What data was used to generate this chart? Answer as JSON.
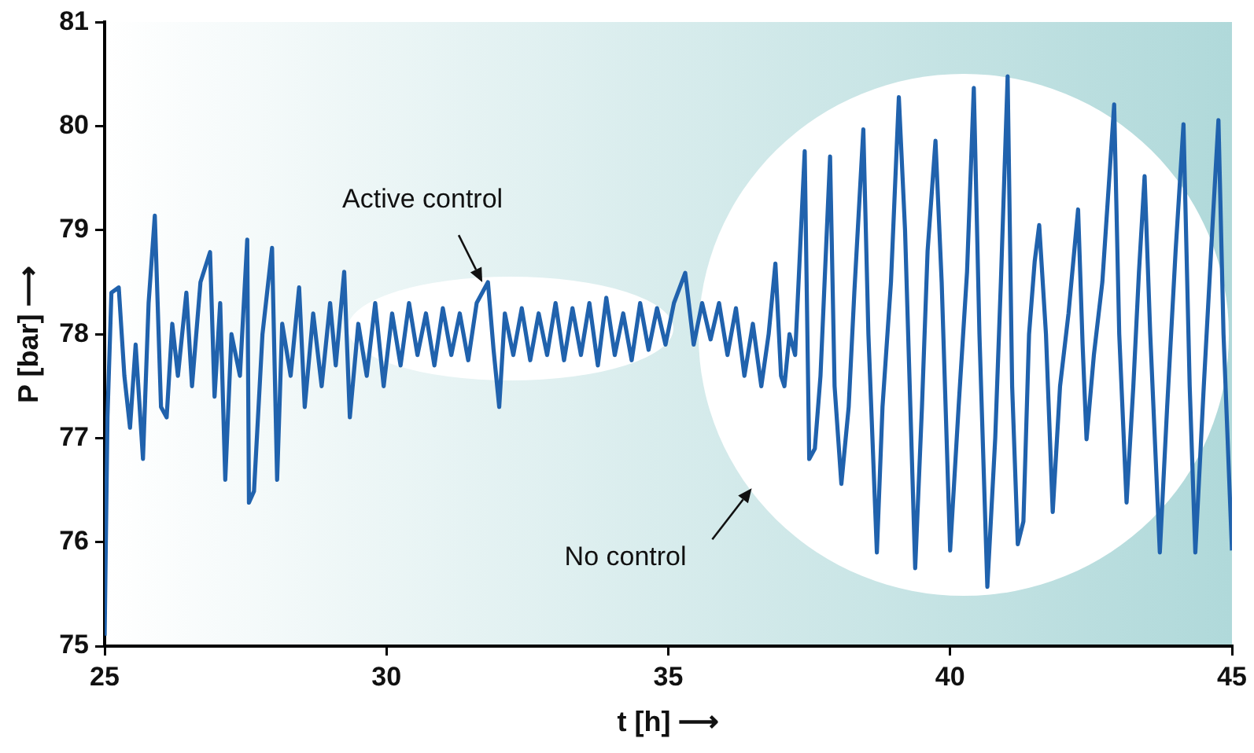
{
  "chart_data": {
    "type": "line",
    "xlabel": "t [h] ⟶",
    "ylabel": "P [bar] ⟶",
    "xlim": [
      25,
      45
    ],
    "xticks": [
      25,
      30,
      35,
      40,
      45
    ],
    "ylim": [
      75,
      81
    ],
    "yticks": [
      75,
      76,
      77,
      78,
      79,
      80,
      81
    ],
    "grid": false,
    "legend": false,
    "marker": "none",
    "line_style": "solid",
    "annotations": [
      {
        "text": "Active control",
        "x": 31.7,
        "y": 78.5
      },
      "No control"
    ],
    "x": [
      25.0,
      25.05,
      25.12,
      25.25,
      25.35,
      25.45,
      25.55,
      25.68,
      25.78,
      25.89,
      26.0,
      26.1,
      26.2,
      26.3,
      26.45,
      26.55,
      26.7,
      26.87,
      26.95,
      27.05,
      27.14,
      27.25,
      27.4,
      27.53,
      27.56,
      27.65,
      27.8,
      27.97,
      28.06,
      28.15,
      28.3,
      28.45,
      28.55,
      28.7,
      28.85,
      29.0,
      29.1,
      29.25,
      29.35,
      29.5,
      29.65,
      29.8,
      29.95,
      30.1,
      30.25,
      30.4,
      30.55,
      30.7,
      30.85,
      31.0,
      31.15,
      31.3,
      31.45,
      31.6,
      31.8,
      31.9,
      32.0,
      32.1,
      32.25,
      32.4,
      32.55,
      32.7,
      32.85,
      33.0,
      33.15,
      33.3,
      33.45,
      33.6,
      33.75,
      33.9,
      34.05,
      34.2,
      34.35,
      34.5,
      34.65,
      34.8,
      34.95,
      35.1,
      35.3,
      35.45,
      35.6,
      35.75,
      35.9,
      36.05,
      36.2,
      36.35,
      36.5,
      36.65,
      36.78,
      36.9,
      37.0,
      37.06,
      37.15,
      37.25,
      37.42,
      37.5,
      37.6,
      37.7,
      37.87,
      37.95,
      38.07,
      38.2,
      38.3,
      38.46,
      38.55,
      38.7,
      38.8,
      38.95,
      39.09,
      39.2,
      39.38,
      39.5,
      39.6,
      39.74,
      39.85,
      40.0,
      40.15,
      40.3,
      40.42,
      40.52,
      40.66,
      40.8,
      40.9,
      41.02,
      41.1,
      41.2,
      41.3,
      41.4,
      41.5,
      41.58,
      41.7,
      41.82,
      41.95,
      42.1,
      42.27,
      42.35,
      42.42,
      42.55,
      42.7,
      42.91,
      43.0,
      43.13,
      43.25,
      43.35,
      43.45,
      43.55,
      43.72,
      43.85,
      44.0,
      44.14,
      44.25,
      44.35,
      44.5,
      44.65,
      44.76,
      44.85,
      45.0
    ],
    "series": [
      {
        "color": "#2062ad",
        "values": [
          75.1,
          77.2,
          78.4,
          78.45,
          77.6,
          77.1,
          77.9,
          76.8,
          78.3,
          79.14,
          77.3,
          77.2,
          78.1,
          77.6,
          78.4,
          77.5,
          78.5,
          78.79,
          77.4,
          78.3,
          76.6,
          78.0,
          77.6,
          78.91,
          76.38,
          76.49,
          78.0,
          78.83,
          76.6,
          78.1,
          77.6,
          78.45,
          77.3,
          78.2,
          77.5,
          78.3,
          77.7,
          78.6,
          77.2,
          78.1,
          77.6,
          78.3,
          77.5,
          78.2,
          77.7,
          78.3,
          77.8,
          78.2,
          77.7,
          78.25,
          77.8,
          78.2,
          77.75,
          78.3,
          78.5,
          77.85,
          77.3,
          78.2,
          77.8,
          78.25,
          77.75,
          78.2,
          77.8,
          78.3,
          77.75,
          78.25,
          77.8,
          78.3,
          77.7,
          78.35,
          77.8,
          78.2,
          77.75,
          78.3,
          77.85,
          78.25,
          77.9,
          78.3,
          78.59,
          77.9,
          78.3,
          77.95,
          78.3,
          77.8,
          78.25,
          77.6,
          78.1,
          77.5,
          78.0,
          78.68,
          77.6,
          77.5,
          78.0,
          77.8,
          79.76,
          76.8,
          76.9,
          77.6,
          79.71,
          77.5,
          76.56,
          77.3,
          78.4,
          79.97,
          78.0,
          75.9,
          77.3,
          78.5,
          80.28,
          79.0,
          75.75,
          77.3,
          78.8,
          79.86,
          78.5,
          75.92,
          77.3,
          78.6,
          80.37,
          78.0,
          75.57,
          77.0,
          78.5,
          80.48,
          77.5,
          75.98,
          76.2,
          78.0,
          78.7,
          79.05,
          78.0,
          76.29,
          77.5,
          78.2,
          79.2,
          77.9,
          76.99,
          77.8,
          78.5,
          80.21,
          78.0,
          76.38,
          77.5,
          78.6,
          79.52,
          78.0,
          75.9,
          77.3,
          78.8,
          80.02,
          77.5,
          75.9,
          77.5,
          79.0,
          80.06,
          78.0,
          75.92
        ]
      }
    ]
  }
}
